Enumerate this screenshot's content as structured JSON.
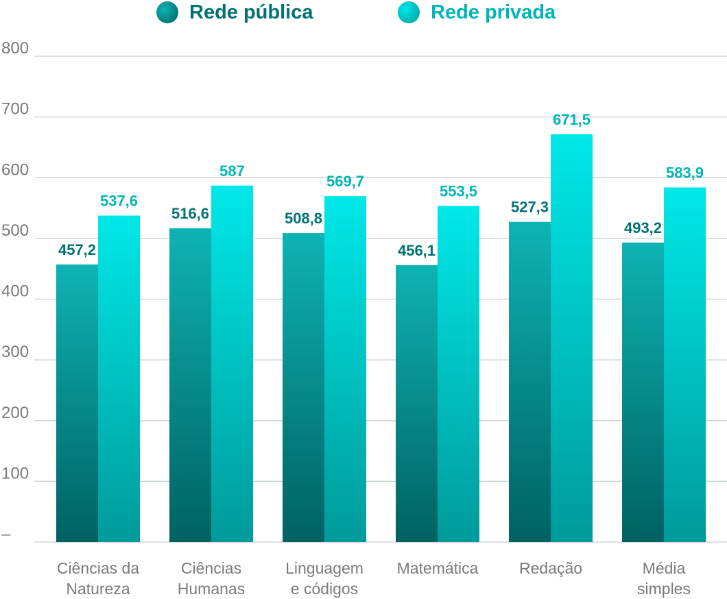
{
  "legend": {
    "public_label": "Rede pública",
    "private_label": "Rede privada"
  },
  "colors": {
    "public_top": "#0fb3b3",
    "public_bottom": "#006161",
    "private_top": "#00e8e8",
    "private_bottom": "#009a9a",
    "public_text": "#007272",
    "private_text": "#00b6b6",
    "grid": "#cfd6d6",
    "tick_text": "#7a7a7a"
  },
  "chart_data": {
    "type": "bar",
    "categories": [
      [
        "Ciências da",
        "Natureza"
      ],
      [
        "Ciências",
        "Humanas"
      ],
      [
        "Linguagem",
        "e códigos"
      ],
      [
        "Matemática"
      ],
      [
        "Redação"
      ],
      [
        "Média",
        "simples"
      ]
    ],
    "series": [
      {
        "name": "Rede pública",
        "values": [
          457.2,
          516.6,
          508.8,
          456.1,
          527.3,
          493.2
        ],
        "labels": [
          "457,2",
          "516,6",
          "508,8",
          "456,1",
          "527,3",
          "493,2"
        ]
      },
      {
        "name": "Rede privada",
        "values": [
          537.6,
          587,
          569.7,
          553.5,
          671.5,
          583.9
        ],
        "labels": [
          "537,6",
          "587",
          "569,7",
          "553,5",
          "671,5",
          "583,9"
        ]
      }
    ],
    "yticks": [
      {
        "value": 0,
        "label": "–"
      },
      {
        "value": 100,
        "label": "100"
      },
      {
        "value": 200,
        "label": "200"
      },
      {
        "value": 300,
        "label": "300"
      },
      {
        "value": 400,
        "label": "400"
      },
      {
        "value": 500,
        "label": "500"
      },
      {
        "value": 600,
        "label": "600"
      },
      {
        "value": 700,
        "label": "700"
      },
      {
        "value": 800,
        "label": "800"
      }
    ],
    "ylim": [
      0,
      800
    ],
    "grid": true,
    "legend_position": "top-center"
  }
}
